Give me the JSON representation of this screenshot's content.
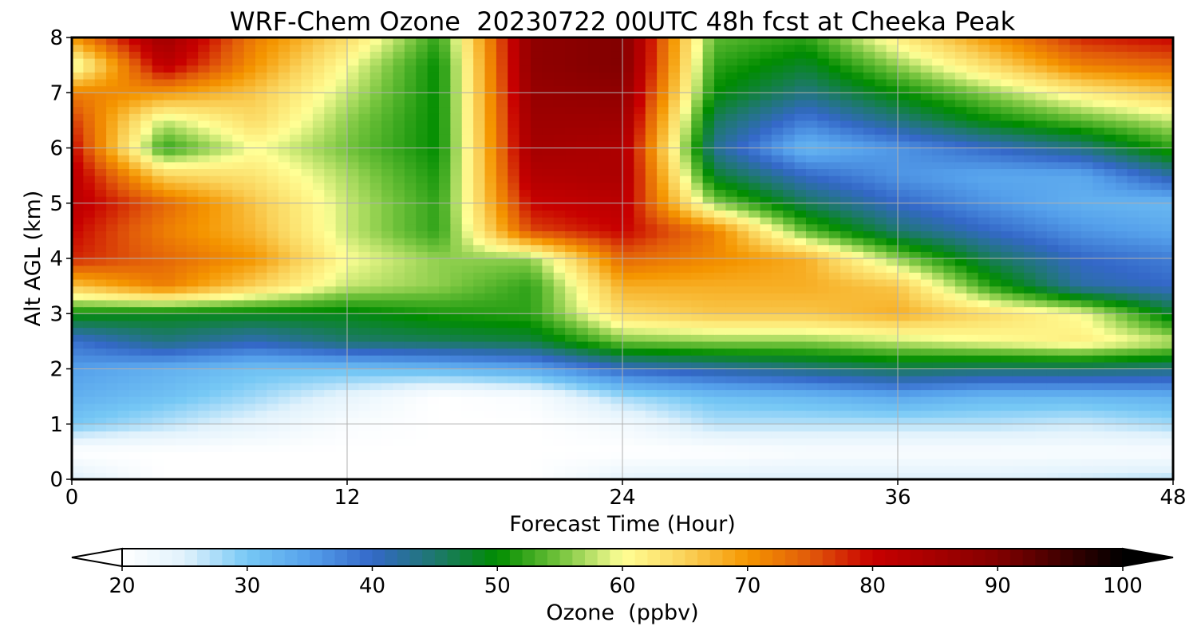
{
  "chart_data": {
    "type": "heatmap",
    "title": "WRF-Chem Ozone  20230722 00UTC 48h fcst at Cheeka Peak",
    "xlabel": "Forecast Time (Hour)",
    "ylabel": "Alt AGL (km)",
    "xlim": [
      0,
      48
    ],
    "ylim": [
      0,
      8
    ],
    "x_ticks": [
      "0",
      "12",
      "24",
      "36",
      "48"
    ],
    "y_ticks": [
      "0",
      "1",
      "2",
      "3",
      "4",
      "5",
      "6",
      "7",
      "8"
    ],
    "grid": true,
    "colorbar": {
      "label": "Ozone  (ppbv)",
      "min": 20,
      "max": 100,
      "extend": "both",
      "ticks": [
        "20",
        "30",
        "40",
        "50",
        "60",
        "70",
        "80",
        "90",
        "100"
      ]
    },
    "x_hours": [
      0,
      4,
      8,
      12,
      16,
      20,
      24,
      28,
      32,
      36,
      40,
      44,
      48
    ],
    "y_km": [
      0,
      0.5,
      1,
      1.5,
      2,
      2.5,
      3,
      3.5,
      4,
      4.5,
      5,
      5.5,
      6,
      6.5,
      7,
      7.5,
      8
    ],
    "values_ppbv": [
      [
        25,
        20,
        20,
        20,
        20,
        20,
        24,
        25,
        25,
        25,
        25,
        26,
        27
      ],
      [
        20,
        20,
        20,
        20,
        20,
        20,
        20,
        20,
        21,
        21,
        21,
        21,
        21
      ],
      [
        30,
        27,
        24,
        21,
        20,
        20,
        22,
        27,
        27,
        27,
        27,
        26,
        28
      ],
      [
        33,
        31,
        28,
        24,
        20,
        21,
        28,
        31,
        32,
        34,
        32,
        32,
        33
      ],
      [
        35,
        33,
        31,
        31,
        32,
        34,
        40,
        42,
        44,
        46,
        45,
        45,
        44
      ],
      [
        39,
        44,
        41,
        45,
        46,
        47,
        55,
        56,
        56,
        58,
        60,
        62,
        58
      ],
      [
        50,
        49,
        49,
        49,
        51,
        52,
        64,
        66,
        66,
        68,
        64,
        60,
        48
      ],
      [
        66,
        72,
        65,
        58,
        56,
        52,
        68,
        68,
        68,
        66,
        52,
        42,
        40
      ],
      [
        78,
        74,
        70,
        60,
        56,
        56,
        74,
        71,
        68,
        56,
        46,
        40,
        38
      ],
      [
        80,
        72,
        67,
        58,
        52,
        76,
        80,
        72,
        54,
        45,
        40,
        36,
        34
      ],
      [
        82,
        74,
        66,
        58,
        52,
        80,
        82,
        56,
        46,
        40,
        36,
        33,
        32
      ],
      [
        82,
        65,
        63,
        57,
        51,
        83,
        84,
        48,
        40,
        36,
        34,
        34,
        42
      ],
      [
        80,
        52,
        60,
        55,
        50,
        85,
        84,
        43,
        32,
        36,
        40,
        44,
        52
      ],
      [
        77,
        58,
        64,
        56,
        50,
        86,
        86,
        46,
        38,
        44,
        50,
        54,
        58
      ],
      [
        72,
        70,
        66,
        58,
        50,
        87,
        88,
        50,
        44,
        50,
        56,
        62,
        66
      ],
      [
        58,
        82,
        70,
        60,
        50,
        88,
        90,
        52,
        48,
        56,
        64,
        72,
        74
      ],
      [
        70,
        86,
        72,
        64,
        52,
        88,
        90,
        54,
        52,
        62,
        70,
        78,
        80
      ]
    ]
  }
}
